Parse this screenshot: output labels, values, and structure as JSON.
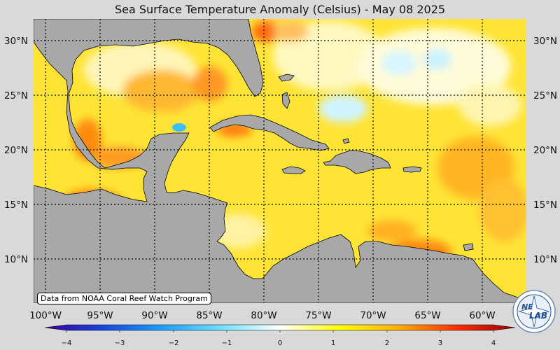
{
  "title": "Sea Surface Temperature Anomaly (Celsius) - May 08 2025",
  "credit": "Data from NOAA Coral Reef Watch Program",
  "logo": {
    "icon": "nesdis-star-logo",
    "text_line1": "NE",
    "text_line2": "LAB"
  },
  "longitude_labels": [
    "100°W",
    "95°W",
    "90°W",
    "85°W",
    "80°W",
    "75°W",
    "70°W",
    "65°W",
    "60°W"
  ],
  "latitude_labels": [
    "30°N",
    "25°N",
    "20°N",
    "15°N",
    "10°N"
  ],
  "colorbar": {
    "tick_labels": [
      "−4",
      "−3",
      "−2",
      "−1",
      "0",
      "1",
      "2",
      "3",
      "4"
    ],
    "colors": [
      "#3a00a0",
      "#1646e0",
      "#1aa0ff",
      "#6fe0ff",
      "#ffffff",
      "#ffff00",
      "#ffb000",
      "#ff3000",
      "#9a0000"
    ]
  },
  "colors": {
    "land": "#a8a8a8",
    "ocean_anomaly_main": "#ffe030",
    "background": "#d9d9d9"
  }
}
